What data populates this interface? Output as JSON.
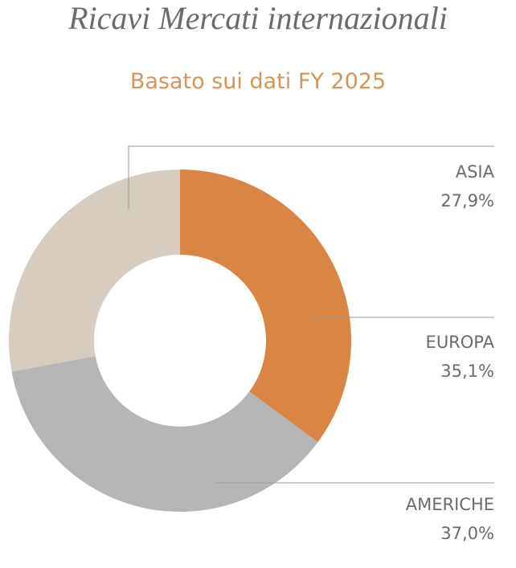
{
  "chart_data": {
    "type": "donut",
    "title": "Ricavi Mercati internazionali",
    "subtitle": "Basato sui dati FY 2025",
    "categories": [
      "ASIA",
      "EUROPA",
      "AMERICHE"
    ],
    "values": [
      27.9,
      35.1,
      37.0
    ],
    "value_labels": [
      "27,9%",
      "35,1%",
      "37,0%"
    ],
    "colors": [
      "#d7cdbf",
      "#d98645",
      "#b5b5b5"
    ]
  }
}
